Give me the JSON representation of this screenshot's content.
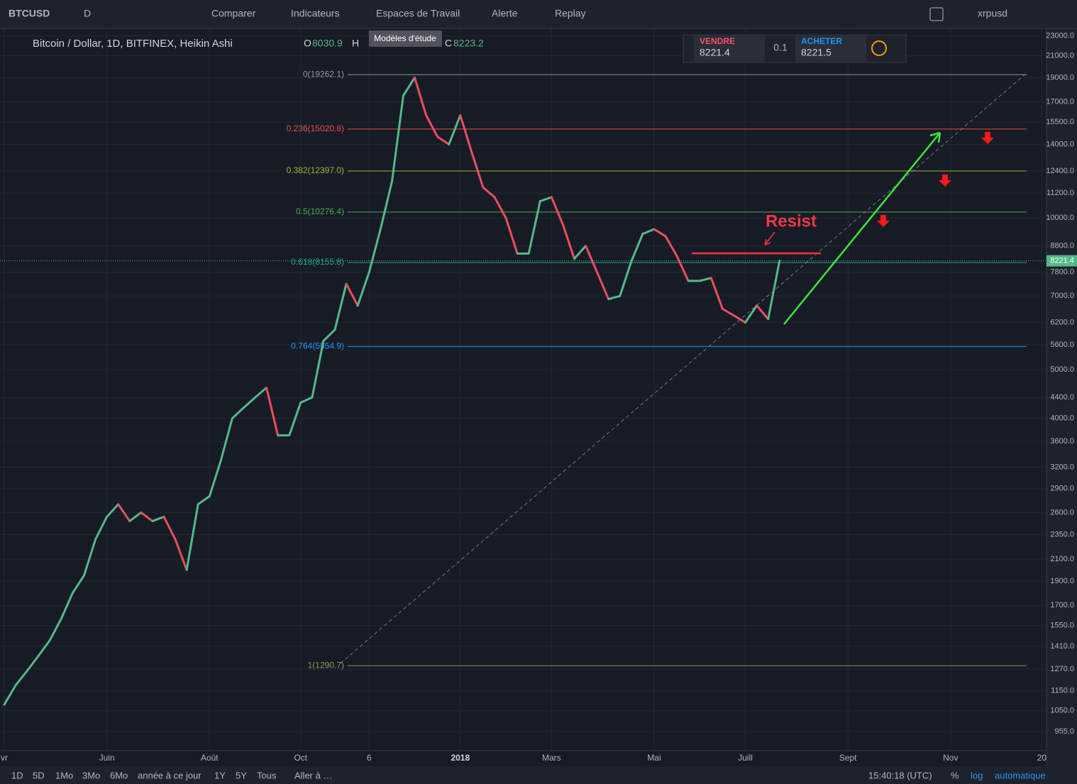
{
  "toolbar": {
    "symbol": "BTCUSD",
    "interval": "D",
    "compare": "Comparer",
    "indicators": "Indicateurs",
    "workspaces": "Espaces de Travail",
    "alert": "Alerte",
    "replay": "Replay",
    "account": "xrpusd",
    "tooltip": "Modèles d'étude"
  },
  "legend": {
    "open_label": "O",
    "open": 8030.9,
    "high_label": "H",
    "close_label": "C",
    "close": 8223.2
  },
  "trade_widget": {
    "sell": "VENDRE",
    "sell_price": 8221.4,
    "quantity": 0.1,
    "buy": "ACHETER",
    "buy_price": 8221.5
  },
  "bottom_bar": {
    "ranges": [
      "1D",
      "5D",
      "1Mo",
      "3Mo",
      "6Mo",
      "année à ce jour",
      "1Y",
      "5Y",
      "Tous"
    ],
    "goto": "Aller à …",
    "time": "15:40:18 (UTC)",
    "percent": "%",
    "log": "log",
    "auto": "automatique"
  },
  "chart_data": {
    "type": "line",
    "title": "Bitcoin / Dollar, 1D, BITFINEX, Heikin Ashi",
    "log_scale": true,
    "grid": true,
    "categories": [
      "vr",
      null,
      null,
      null,
      null,
      null,
      null,
      null,
      null,
      "Juin",
      null,
      null,
      null,
      null,
      null,
      null,
      null,
      null,
      "Août",
      null,
      null,
      null,
      null,
      null,
      null,
      null,
      "Oct",
      null,
      null,
      null,
      null,
      null,
      "6",
      null,
      null,
      null,
      null,
      null,
      null,
      null,
      "2018",
      null,
      null,
      null,
      null,
      null,
      null,
      null,
      "Mars",
      null,
      null,
      null,
      null,
      null,
      null,
      null,
      null,
      "Mai",
      null,
      null,
      null,
      null,
      null,
      null,
      null,
      "Juill",
      null,
      null,
      null,
      null,
      null,
      null,
      null,
      null,
      "Sept",
      null,
      null,
      null,
      null,
      null,
      null,
      null,
      null,
      "Nov",
      null,
      null,
      null,
      null,
      null,
      null,
      null,
      "20"
    ],
    "series": [
      {
        "up_color": "#53b987",
        "down_color": "#eb4d5c",
        "values": [
          1080,
          1180,
          1260,
          1350,
          1450,
          1600,
          1800,
          1950,
          2300,
          2550,
          2700,
          2500,
          2600,
          2500,
          2550,
          2300,
          2000,
          2700,
          2800,
          3300,
          4000,
          4200,
          4400,
          4600,
          3700,
          3700,
          4300,
          4400,
          5700,
          6000,
          7400,
          6700,
          7800,
          9500,
          11800,
          17500,
          19000,
          16000,
          14500,
          14000,
          16000,
          13500,
          11500,
          11000,
          10000,
          8500,
          8500,
          10800,
          11000,
          9700,
          8300,
          8800,
          7800,
          6900,
          7000,
          8200,
          9300,
          9500,
          9200,
          8400,
          7500,
          7500,
          7600,
          6600,
          6400,
          6200,
          6700,
          6300,
          8220,
          null,
          null,
          null,
          null,
          null,
          null,
          null,
          null,
          null,
          null,
          null,
          null,
          null,
          null,
          null,
          null,
          null,
          null,
          null,
          null,
          null,
          null,
          null
        ]
      }
    ],
    "ylim": [
      875,
      23800
    ],
    "yticks": [
      {
        "value": 23000,
        "label": "23000.0"
      },
      {
        "value": 21000,
        "label": "21000.0"
      },
      {
        "value": 19000,
        "label": "19000.0"
      },
      {
        "value": 17000,
        "label": "17000.0"
      },
      {
        "value": 15500,
        "label": "15500.0"
      },
      {
        "value": 14000,
        "label": "14000.0"
      },
      {
        "value": 12400,
        "label": "12400.0"
      },
      {
        "value": 11200,
        "label": "11200.0"
      },
      {
        "value": 10000,
        "label": "10000.0"
      },
      {
        "value": 8800,
        "label": "8800.0"
      },
      {
        "value": 7800,
        "label": "7800.0"
      },
      {
        "value": 7000,
        "label": "7000.0"
      },
      {
        "value": 6200,
        "label": "6200.0"
      },
      {
        "value": 5600,
        "label": "5600.0"
      },
      {
        "value": 5000,
        "label": "5000.0"
      },
      {
        "value": 4400,
        "label": "4400.0"
      },
      {
        "value": 4000,
        "label": "4000.0"
      },
      {
        "value": 3600,
        "label": "3600.0"
      },
      {
        "value": 3200,
        "label": "3200.0"
      },
      {
        "value": 2900,
        "label": "2900.0"
      },
      {
        "value": 2600,
        "label": "2600.0"
      },
      {
        "value": 2350,
        "label": "2350.0"
      },
      {
        "value": 2100,
        "label": "2100.0"
      },
      {
        "value": 1900,
        "label": "1900.0"
      },
      {
        "value": 1700,
        "label": "1700.0"
      },
      {
        "value": 1550,
        "label": "1550.0"
      },
      {
        "value": 1410,
        "label": "1410.0"
      },
      {
        "value": 1270,
        "label": "1270.0"
      },
      {
        "value": 1150,
        "label": "1150.0"
      },
      {
        "value": 1050,
        "label": "1050.0"
      },
      {
        "value": 955,
        "label": "955.0"
      }
    ],
    "fib_levels": [
      {
        "value": 19262.1,
        "label": "0(19262.1)",
        "color": "#9598a1"
      },
      {
        "value": 15020.8,
        "label": "0.236(15020.8)",
        "color": "#e84d4d"
      },
      {
        "value": 12397.0,
        "label": "0.382(12397.0)",
        "color": "#9ab32e"
      },
      {
        "value": 10276.4,
        "label": "0.5(10276.4)",
        "color": "#4caf50"
      },
      {
        "value": 8155.8,
        "label": "0.618(8155.8)",
        "color": "#26a69a"
      },
      {
        "value": 5554.9,
        "label": "0.764(5554.9)",
        "color": "#2196f3"
      },
      {
        "value": 1290.7,
        "label": "1(1290.7)",
        "color": "#8a9a4a"
      }
    ],
    "last_price": 8221.4,
    "last_price_color": "#53b987",
    "annotation": "Resist"
  }
}
